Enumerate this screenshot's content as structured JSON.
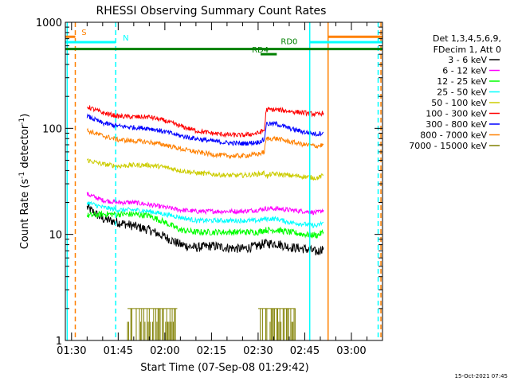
{
  "chart_data": {
    "type": "line",
    "title": "RHESSI Observing Summary Count Rates",
    "xlabel": "Start Time (07-Sep-08 01:29:42)",
    "ylabel_main": "Count Rate (s",
    "ylabel_sup1": "-1",
    "ylabel_mid": " detector",
    "ylabel_sup2": "-1",
    "ylabel_end": ")",
    "yscale": "log",
    "ylim": [
      1,
      1000
    ],
    "xlim_minutes": [
      88,
      190
    ],
    "x_ticks": [
      {
        "t": 90,
        "label": "01:30"
      },
      {
        "t": 105,
        "label": "01:45"
      },
      {
        "t": 120,
        "label": "02:00"
      },
      {
        "t": 135,
        "label": "02:15"
      },
      {
        "t": 150,
        "label": "02:30"
      },
      {
        "t": 165,
        "label": "02:45"
      },
      {
        "t": 180,
        "label": "03:00"
      }
    ],
    "y_ticks": [
      {
        "v": 1,
        "label": "1"
      },
      {
        "v": 10,
        "label": "10"
      },
      {
        "v": 100,
        "label": "100"
      },
      {
        "v": 1000,
        "label": "1000"
      }
    ],
    "legend_header": [
      "Det 1,3,4,5,6,9,",
      "FDecim 1, Att 0"
    ],
    "timestamp": "15-Oct-2021 07:45",
    "series": [
      {
        "name": "3 - 6 keV",
        "color": "#000000",
        "points": [
          [
            95,
            18
          ],
          [
            100,
            14
          ],
          [
            105,
            13
          ],
          [
            110,
            12
          ],
          [
            115,
            11
          ],
          [
            120,
            9.5
          ],
          [
            125,
            8
          ],
          [
            130,
            7.5
          ],
          [
            135,
            7.8
          ],
          [
            140,
            7.5
          ],
          [
            145,
            7.3
          ],
          [
            150,
            7.8
          ],
          [
            152,
            8.2
          ],
          [
            156,
            8.2
          ],
          [
            160,
            7.6
          ],
          [
            165,
            7.3
          ],
          [
            169,
            6.8
          ],
          [
            171,
            7.5
          ]
        ]
      },
      {
        "name": "6 - 12 keV",
        "color": "#ff00ff",
        "points": [
          [
            95,
            24
          ],
          [
            100,
            21
          ],
          [
            105,
            20
          ],
          [
            110,
            20
          ],
          [
            115,
            19
          ],
          [
            120,
            18
          ],
          [
            125,
            17
          ],
          [
            130,
            16.5
          ],
          [
            135,
            16.5
          ],
          [
            140,
            16.5
          ],
          [
            145,
            16.5
          ],
          [
            150,
            17
          ],
          [
            152,
            17.5
          ],
          [
            156,
            17.5
          ],
          [
            160,
            17
          ],
          [
            165,
            16.5
          ],
          [
            169,
            16
          ],
          [
            171,
            17
          ]
        ]
      },
      {
        "name": "12 - 25 keV",
        "color": "#00ff00",
        "points": [
          [
            95,
            15
          ],
          [
            100,
            15.5
          ],
          [
            105,
            15.5
          ],
          [
            110,
            15.5
          ],
          [
            115,
            15
          ],
          [
            120,
            13
          ],
          [
            125,
            11
          ],
          [
            130,
            10.5
          ],
          [
            135,
            10.5
          ],
          [
            140,
            10.5
          ],
          [
            145,
            10.5
          ],
          [
            150,
            10.5
          ],
          [
            152,
            11
          ],
          [
            156,
            11
          ],
          [
            160,
            10.5
          ],
          [
            165,
            10
          ],
          [
            169,
            9.8
          ],
          [
            171,
            10.5
          ]
        ]
      },
      {
        "name": "25 - 50 keV",
        "color": "#00ffff",
        "points": [
          [
            95,
            20
          ],
          [
            100,
            18
          ],
          [
            105,
            17
          ],
          [
            110,
            17
          ],
          [
            115,
            16.5
          ],
          [
            120,
            15.5
          ],
          [
            125,
            14.5
          ],
          [
            130,
            13.5
          ],
          [
            135,
            13.5
          ],
          [
            140,
            13.5
          ],
          [
            145,
            13.5
          ],
          [
            150,
            13.5
          ],
          [
            152,
            14
          ],
          [
            156,
            14
          ],
          [
            160,
            13
          ],
          [
            165,
            12.5
          ],
          [
            169,
            12
          ],
          [
            171,
            13
          ]
        ]
      },
      {
        "name": "50 - 100 keV",
        "color": "#cccc00",
        "points": [
          [
            95,
            50
          ],
          [
            100,
            46
          ],
          [
            105,
            44
          ],
          [
            110,
            45
          ],
          [
            115,
            45
          ],
          [
            120,
            43
          ],
          [
            125,
            40
          ],
          [
            130,
            38
          ],
          [
            135,
            37
          ],
          [
            140,
            36
          ],
          [
            145,
            36
          ],
          [
            150,
            37
          ],
          [
            152,
            38
          ],
          [
            153,
            35
          ],
          [
            154,
            37
          ],
          [
            156,
            37
          ],
          [
            160,
            36
          ],
          [
            165,
            35
          ],
          [
            169,
            34
          ],
          [
            171,
            36
          ]
        ]
      },
      {
        "name": "100 - 300 keV",
        "color": "#ff0000",
        "points": [
          [
            95,
            160
          ],
          [
            100,
            140
          ],
          [
            105,
            130
          ],
          [
            110,
            128
          ],
          [
            115,
            128
          ],
          [
            120,
            118
          ],
          [
            125,
            105
          ],
          [
            130,
            95
          ],
          [
            135,
            90
          ],
          [
            140,
            87
          ],
          [
            145,
            86
          ],
          [
            150,
            90
          ],
          [
            152,
            96
          ],
          [
            152.6,
            150
          ],
          [
            156,
            150
          ],
          [
            160,
            145
          ],
          [
            165,
            140
          ],
          [
            169,
            135
          ],
          [
            171,
            140
          ]
        ]
      },
      {
        "name": "300 - 800 keV",
        "color": "#0000ff",
        "points": [
          [
            95,
            130
          ],
          [
            100,
            112
          ],
          [
            105,
            105
          ],
          [
            110,
            102
          ],
          [
            115,
            100
          ],
          [
            120,
            93
          ],
          [
            125,
            85
          ],
          [
            130,
            80
          ],
          [
            135,
            76
          ],
          [
            140,
            73
          ],
          [
            145,
            72
          ],
          [
            150,
            74
          ],
          [
            152,
            78
          ],
          [
            152.6,
            110
          ],
          [
            156,
            110
          ],
          [
            160,
            100
          ],
          [
            165,
            92
          ],
          [
            169,
            88
          ],
          [
            171,
            92
          ]
        ]
      },
      {
        "name": "800 - 7000 keV",
        "color": "#ff8000",
        "points": [
          [
            95,
            95
          ],
          [
            100,
            85
          ],
          [
            105,
            78
          ],
          [
            110,
            76
          ],
          [
            115,
            74
          ],
          [
            120,
            70
          ],
          [
            125,
            64
          ],
          [
            130,
            60
          ],
          [
            135,
            57
          ],
          [
            140,
            55
          ],
          [
            145,
            55
          ],
          [
            150,
            57
          ],
          [
            152,
            60
          ],
          [
            152.6,
            80
          ],
          [
            156,
            80
          ],
          [
            160,
            75
          ],
          [
            165,
            70
          ],
          [
            169,
            68
          ],
          [
            171,
            70
          ]
        ]
      },
      {
        "name": "7000 - 15000 keV",
        "color": "#808000"
      }
    ],
    "attenuator_lines": [
      {
        "t": 88.6,
        "color": "#00ffff",
        "dash": false
      },
      {
        "t": 166.6,
        "color": "#00ffff",
        "dash": false
      },
      {
        "t": 172.5,
        "color": "#ff8000",
        "dash": false
      },
      {
        "t": 91.2,
        "color": "#ff8000",
        "dash": true
      },
      {
        "t": 104.2,
        "color": "#00ffff",
        "dash": true
      },
      {
        "t": 188.6,
        "color": "#00ffff",
        "dash": true
      },
      {
        "t": 189.5,
        "color": "#ff8000",
        "dash": true
      }
    ],
    "flag_bars": [
      {
        "label": "S",
        "color": "#ff8000",
        "segments": [
          [
            88,
            91.2
          ],
          [
            172.5,
            190
          ]
        ],
        "y": 730,
        "label_t": 93.2
      },
      {
        "label": "N",
        "color": "#00ffff",
        "segments": [
          [
            88,
            104.2
          ],
          [
            166.6,
            190
          ]
        ],
        "y": 650,
        "label_t": 106.5
      },
      {
        "label": "",
        "color": "#008000",
        "segments": [
          [
            88,
            190
          ]
        ],
        "y": 560
      },
      {
        "label": "RD0",
        "color": "#008000",
        "segments": [],
        "y": 600,
        "label_t": 157.3
      },
      {
        "label": "RD4",
        "color": "#008000",
        "segments": [
          [
            150.8,
            156
          ]
        ],
        "y": 500,
        "label_t": 148
      }
    ]
  }
}
